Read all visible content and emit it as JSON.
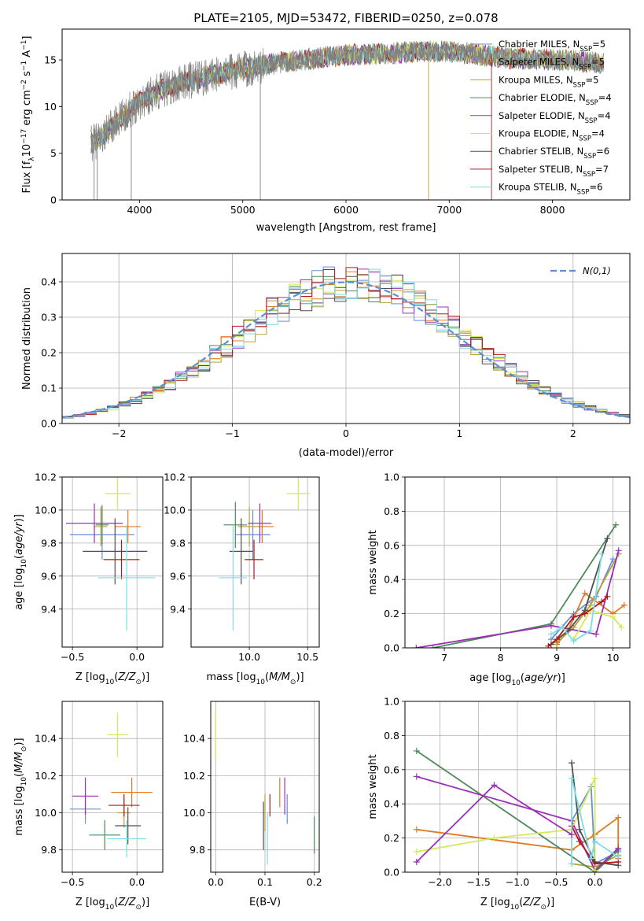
{
  "figure_title": "PLATE=2105, MJD=53472, FIBERID=0250, z=0.078",
  "models": [
    {
      "name": "Chabrier MILES, N_SSP=5",
      "label_main": "Chabrier MILES, N",
      "label_sub": "SSP",
      "label_tail": "=5",
      "color": "#6a8fd6"
    },
    {
      "name": "Salpeter MILES, N_SSP=5",
      "label_main": "Salpeter MILES, N",
      "label_sub": "SSP",
      "label_tail": "=5",
      "color": "#e07b21"
    },
    {
      "name": "Kroupa MILES, N_SSP=5",
      "label_main": "Kroupa MILES, N",
      "label_sub": "SSP",
      "label_tail": "=5",
      "color": "#b8a03a"
    },
    {
      "name": "Chabrier ELODIE, N_SSP=4",
      "label_main": "Chabrier ELODIE, N",
      "label_sub": "SSP",
      "label_tail": "=4",
      "color": "#4e8a5a"
    },
    {
      "name": "Salpeter ELODIE, N_SSP=4",
      "label_main": "Salpeter ELODIE, N",
      "label_sub": "SSP",
      "label_tail": "=4",
      "color": "#9b30b5"
    },
    {
      "name": "Kroupa ELODIE, N_SSP=4",
      "label_main": "Kroupa ELODIE, N",
      "label_sub": "SSP",
      "label_tail": "=4",
      "color": "#d4e85a"
    },
    {
      "name": "Chabrier STELIB, N_SSP=6",
      "label_main": "Chabrier STELIB, N",
      "label_sub": "SSP",
      "label_tail": "=6",
      "color": "#505050"
    },
    {
      "name": "Salpeter STELIB, N_SSP=7",
      "label_main": "Salpeter STELIB, N",
      "label_sub": "SSP",
      "label_tail": "=7",
      "color": "#b01818"
    },
    {
      "name": "Kroupa STELIB, N_SSP=6",
      "label_main": "Kroupa STELIB, N",
      "label_sub": "SSP",
      "label_tail": "=6",
      "color": "#7fdde6"
    }
  ],
  "chart_data": [
    {
      "id": "spectrum",
      "type": "line",
      "xlabel": "wavelength [Angstrom, rest frame]",
      "ylabel": "Flux [f_λ 10^-17 erg cm^-2 s^-1 A^-1]",
      "xlim": [
        3250,
        8750
      ],
      "ylim": [
        0,
        18.3
      ],
      "xticks": [
        4000,
        5000,
        6000,
        7000,
        8000
      ],
      "yticks": [
        0,
        5,
        10,
        15
      ],
      "grid": false,
      "legend": "right",
      "data_color": "#808080",
      "continuum": {
        "x": [
          3530,
          3600,
          3700,
          3800,
          3900,
          4000,
          4100,
          4200,
          4300,
          4400,
          4600,
          4800,
          5000,
          5200,
          5400,
          5600,
          5800,
          6000,
          6200,
          6400,
          6600,
          6800,
          7000,
          7200,
          7400,
          7600,
          7800,
          8000,
          8200,
          8400,
          8500
        ],
        "y": [
          6.0,
          6.5,
          7.5,
          8.5,
          9.6,
          10.6,
          11.2,
          11.8,
          12.1,
          12.5,
          13.1,
          13.6,
          14.0,
          14.4,
          14.8,
          15.0,
          15.3,
          15.5,
          15.6,
          15.7,
          15.8,
          15.9,
          15.9,
          15.7,
          15.4,
          15.2,
          15.1,
          15.0,
          14.9,
          14.7,
          14.6
        ]
      },
      "dropouts": [
        {
          "x": 3560,
          "y": 0
        },
        {
          "x": 3590,
          "y": 0
        },
        {
          "x": 3920,
          "y": 0
        },
        {
          "x": 5170,
          "y": 0
        },
        {
          "x": 6800,
          "y": 0
        },
        {
          "x": 7410,
          "y": 0
        }
      ]
    },
    {
      "id": "residuals",
      "type": "step",
      "xlabel": "(data-model)/error",
      "ylabel": "Normed distribution",
      "xlim": [
        -2.5,
        2.5
      ],
      "ylim": [
        0,
        0.48
      ],
      "xticks": [
        -2,
        -1,
        0,
        1,
        2
      ],
      "yticks": [
        0.0,
        0.1,
        0.2,
        0.3,
        0.4
      ],
      "grid": true,
      "legend": "upper right",
      "gaussian_label": "N(0,1)",
      "gaussian_color": "#5b8fd6"
    },
    {
      "id": "age_vs_Z",
      "type": "errorbar",
      "xlabel": "Z [log10(Z/Z⊙)]",
      "ylabel": "age [log10(age/yr)]",
      "xlim": [
        -0.58,
        0.2
      ],
      "ylim": [
        9.17,
        10.2
      ],
      "xticks": [
        -0.5,
        0.0
      ],
      "yticks": [
        9.4,
        9.6,
        9.8,
        10.0,
        10.2
      ],
      "grid": true,
      "points": [
        {
          "model": 0,
          "x": -0.27,
          "y": 9.85,
          "xerr": 0.25,
          "yerr": 0.15
        },
        {
          "model": 1,
          "x": -0.07,
          "y": 9.9,
          "xerr": 0.1,
          "yerr": 0.1
        },
        {
          "model": 2,
          "x": -0.28,
          "y": 9.9,
          "xerr": 0.05,
          "yerr": 0.12
        },
        {
          "model": 3,
          "x": -0.27,
          "y": 9.91,
          "xerr": 0.05,
          "yerr": 0.12
        },
        {
          "model": 4,
          "x": -0.33,
          "y": 9.92,
          "xerr": 0.22,
          "yerr": 0.12
        },
        {
          "model": 5,
          "x": -0.15,
          "y": 10.1,
          "xerr": 0.1,
          "yerr": 0.1
        },
        {
          "model": 6,
          "x": -0.17,
          "y": 9.75,
          "xerr": 0.25,
          "yerr": 0.2
        },
        {
          "model": 7,
          "x": -0.12,
          "y": 9.7,
          "xerr": 0.14,
          "yerr": 0.12
        },
        {
          "model": 8,
          "x": -0.08,
          "y": 9.59,
          "xerr": 0.22,
          "yerr": 0.32
        }
      ]
    },
    {
      "id": "age_vs_mass",
      "type": "errorbar",
      "xlabel": "mass [log10(M/M⊙)]",
      "ylabel": "",
      "xlim": [
        9.5,
        10.6
      ],
      "ylim": [
        9.17,
        10.2
      ],
      "xticks": [
        10.0,
        10.5
      ],
      "yticks": [
        9.4,
        9.6,
        9.8,
        10.0,
        10.2
      ],
      "grid": true,
      "points": [
        {
          "model": 0,
          "x": 10.03,
          "y": 9.85,
          "xerr": 0.15,
          "yerr": 0.15
        },
        {
          "model": 1,
          "x": 10.11,
          "y": 9.9,
          "xerr": 0.1,
          "yerr": 0.1
        },
        {
          "model": 2,
          "x": 10.0,
          "y": 9.9,
          "xerr": 0.1,
          "yerr": 0.12
        },
        {
          "model": 3,
          "x": 9.88,
          "y": 9.91,
          "xerr": 0.1,
          "yerr": 0.14
        },
        {
          "model": 4,
          "x": 10.09,
          "y": 9.92,
          "xerr": 0.1,
          "yerr": 0.12
        },
        {
          "model": 5,
          "x": 10.42,
          "y": 10.1,
          "xerr": 0.1,
          "yerr": 0.1
        },
        {
          "model": 6,
          "x": 9.93,
          "y": 9.75,
          "xerr": 0.1,
          "yerr": 0.2
        },
        {
          "model": 7,
          "x": 10.04,
          "y": 9.7,
          "xerr": 0.08,
          "yerr": 0.12
        },
        {
          "model": 8,
          "x": 9.86,
          "y": 9.59,
          "xerr": 0.12,
          "yerr": 0.32
        }
      ]
    },
    {
      "id": "weight_vs_age",
      "type": "line",
      "xlabel": "age [log10(age/yr)]",
      "ylabel": "mass weight",
      "xlim": [
        6.3,
        10.3
      ],
      "ylim": [
        0,
        1.0
      ],
      "xticks": [
        7,
        8,
        9,
        10
      ],
      "yticks": [
        0.0,
        0.2,
        0.4,
        0.6,
        0.8,
        1.0
      ],
      "grid": true,
      "series": [
        {
          "model": 0,
          "x": [
            8.9,
            9.3,
            9.7,
            10.0
          ],
          "y": [
            0.05,
            0.2,
            0.3,
            0.52
          ]
        },
        {
          "model": 1,
          "x": [
            9.0,
            9.2,
            9.5,
            10.0,
            10.2
          ],
          "y": [
            0.02,
            0.1,
            0.32,
            0.2,
            0.25
          ]
        },
        {
          "model": 2,
          "x": [
            9.0,
            9.3,
            9.6,
            10.1
          ],
          "y": [
            0.03,
            0.12,
            0.25,
            0.55
          ]
        },
        {
          "model": 3,
          "x": [
            6.8,
            8.9,
            10.05
          ],
          "y": [
            0.0,
            0.14,
            0.72
          ]
        },
        {
          "model": 4,
          "x": [
            6.5,
            8.9,
            9.7,
            10.1
          ],
          "y": [
            0.0,
            0.13,
            0.08,
            0.57
          ]
        },
        {
          "model": 5,
          "x": [
            9.3,
            9.6,
            10.0,
            10.15
          ],
          "y": [
            0.05,
            0.22,
            0.18,
            0.12
          ]
        },
        {
          "model": 6,
          "x": [
            8.9,
            9.2,
            9.5,
            9.9
          ],
          "y": [
            0.02,
            0.1,
            0.22,
            0.64
          ]
        },
        {
          "model": 7,
          "x": [
            8.85,
            9.0,
            9.3,
            9.5,
            9.8,
            9.9
          ],
          "y": [
            0.01,
            0.05,
            0.18,
            0.2,
            0.27,
            0.3
          ]
        },
        {
          "model": 8,
          "x": [
            8.9,
            9.1,
            9.3,
            9.6,
            9.8
          ],
          "y": [
            0.08,
            0.12,
            0.04,
            0.1,
            0.55
          ]
        }
      ]
    },
    {
      "id": "mass_vs_Z",
      "type": "errorbar",
      "xlabel": "Z [log10(Z/Z⊙)]",
      "ylabel": "mass [log10(M/M⊙)]",
      "xlim": [
        -0.58,
        0.2
      ],
      "ylim": [
        9.68,
        10.6
      ],
      "xticks": [
        -0.5,
        0.0
      ],
      "yticks": [
        9.8,
        10.0,
        10.2,
        10.4
      ],
      "grid": true,
      "points": [
        {
          "model": 0,
          "x": -0.4,
          "y": 10.02,
          "xerr": 0.12,
          "yerr": 0.08
        },
        {
          "model": 1,
          "x": -0.04,
          "y": 10.11,
          "xerr": 0.16,
          "yerr": 0.08
        },
        {
          "model": 2,
          "x": -0.1,
          "y": 10.0,
          "xerr": 0.05,
          "yerr": 0.08
        },
        {
          "model": 3,
          "x": -0.25,
          "y": 9.88,
          "xerr": 0.12,
          "yerr": 0.08
        },
        {
          "model": 4,
          "x": -0.4,
          "y": 10.09,
          "xerr": 0.1,
          "yerr": 0.1
        },
        {
          "model": 5,
          "x": -0.15,
          "y": 10.42,
          "xerr": 0.08,
          "yerr": 0.12
        },
        {
          "model": 6,
          "x": -0.07,
          "y": 9.93,
          "xerr": 0.1,
          "yerr": 0.1
        },
        {
          "model": 7,
          "x": -0.1,
          "y": 10.04,
          "xerr": 0.12,
          "yerr": 0.06
        },
        {
          "model": 8,
          "x": -0.08,
          "y": 9.86,
          "xerr": 0.15,
          "yerr": 0.1
        }
      ]
    },
    {
      "id": "mass_vs_EBV",
      "type": "errorbar",
      "xlabel": "E(B-V)",
      "ylabel": "",
      "xlim": [
        -0.01,
        0.21
      ],
      "ylim": [
        9.68,
        10.6
      ],
      "xticks": [
        0.0,
        0.1,
        0.2
      ],
      "yticks": [
        9.8,
        10.0,
        10.2,
        10.4
      ],
      "grid": true,
      "points": [
        {
          "model": 0,
          "x": 0.145,
          "y": 10.02,
          "xerr": 0,
          "yerr": 0.08
        },
        {
          "model": 1,
          "x": 0.13,
          "y": 10.11,
          "xerr": 0,
          "yerr": 0.08
        },
        {
          "model": 2,
          "x": 0.1,
          "y": 10.0,
          "xerr": 0,
          "yerr": 0.1
        },
        {
          "model": 3,
          "x": 0.2,
          "y": 9.88,
          "xerr": 0,
          "yerr": 0.1
        },
        {
          "model": 4,
          "x": 0.14,
          "y": 10.09,
          "xerr": 0,
          "yerr": 0.1
        },
        {
          "model": 5,
          "x": 0.0,
          "y": 10.42,
          "xerr": 0,
          "yerr": 0.14
        },
        {
          "model": 6,
          "x": 0.097,
          "y": 9.93,
          "xerr": 0,
          "yerr": 0.13
        },
        {
          "model": 7,
          "x": 0.11,
          "y": 10.04,
          "xerr": 0,
          "yerr": 0.06
        },
        {
          "model": 8,
          "x": 0.105,
          "y": 9.86,
          "xerr": 0,
          "yerr": 0.14
        }
      ]
    },
    {
      "id": "weight_vs_Z",
      "type": "line",
      "xlabel": "Z [log10(Z/Z⊙)]",
      "ylabel": "mass weight",
      "xlim": [
        -2.45,
        0.45
      ],
      "ylim": [
        0,
        1.0
      ],
      "xticks": [
        -2.0,
        -1.5,
        -1.0,
        -0.5,
        0.0
      ],
      "yticks": [
        0.0,
        0.2,
        0.4,
        0.6,
        0.8,
        1.0
      ],
      "grid": true,
      "series": [
        {
          "model": 0,
          "x": [
            -0.3,
            -0.05,
            0.0,
            0.3
          ],
          "y": [
            0.3,
            0.5,
            0.05,
            0.12
          ]
        },
        {
          "model": 1,
          "x": [
            -2.3,
            -0.3,
            0.0,
            0.3,
            0.3
          ],
          "y": [
            0.25,
            0.13,
            0.22,
            0.32,
            0.08
          ]
        },
        {
          "model": 2,
          "x": [
            -0.3,
            0.0,
            0.3
          ],
          "y": [
            0.05,
            0.03,
            0.1
          ]
        },
        {
          "model": 3,
          "x": [
            -2.3,
            0.0,
            0.3
          ],
          "y": [
            0.71,
            0.0,
            0.13
          ]
        },
        {
          "model": 4,
          "x": [
            -2.3,
            -0.3,
            0.0,
            0.3
          ],
          "y": [
            0.56,
            0.3,
            0.01,
            0.14
          ]
        },
        {
          "model": 5,
          "x": [
            -2.3,
            -1.3,
            -0.3,
            0.0,
            0.0
          ],
          "y": [
            0.12,
            0.2,
            0.25,
            0.55,
            0.01
          ]
        },
        {
          "model": 6,
          "x": [
            -0.3,
            -0.2,
            0.0,
            0.3
          ],
          "y": [
            0.64,
            0.25,
            0.06,
            0.04
          ]
        },
        {
          "model": 7,
          "x": [
            -0.3,
            -0.2,
            0.0,
            0.3
          ],
          "y": [
            0.27,
            0.18,
            0.05,
            0.06
          ]
        },
        {
          "model": 8,
          "x": [
            -0.3,
            -0.3,
            -0.05,
            0.0,
            0.3
          ],
          "y": [
            0.05,
            0.55,
            0.08,
            0.18,
            0.09
          ]
        }
      ],
      "extra_series": [
        {
          "model": 4,
          "x": [
            -2.3,
            -1.3,
            -0.3
          ],
          "y": [
            0.06,
            0.51,
            0.22
          ]
        }
      ]
    }
  ]
}
